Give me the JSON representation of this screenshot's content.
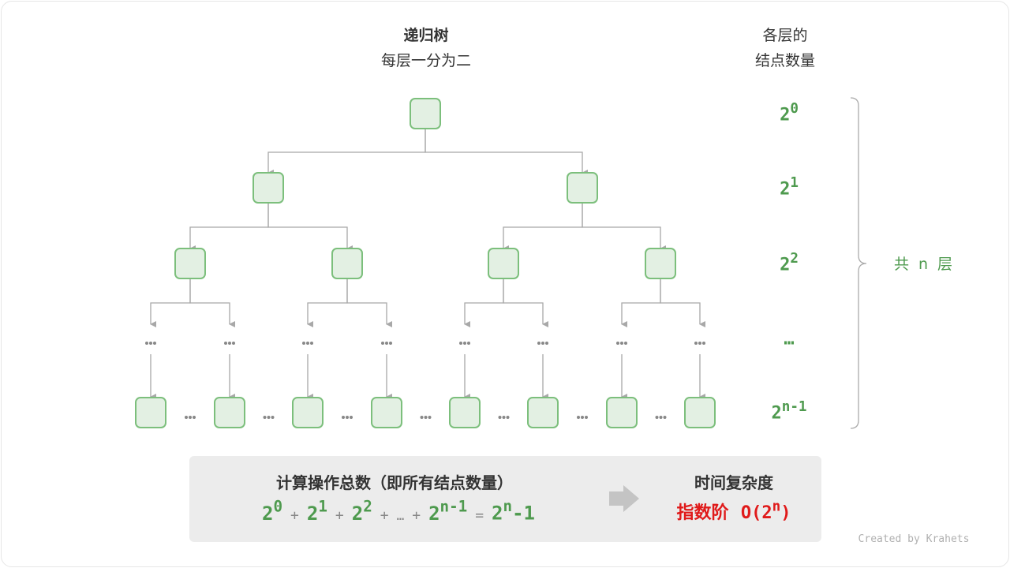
{
  "title": "递归树",
  "subtitle": "每层一分为二",
  "right_header": [
    "各层的",
    "结点数量"
  ],
  "level_counts": [
    {
      "base": "2",
      "exp": "0"
    },
    {
      "base": "2",
      "exp": "1"
    },
    {
      "base": "2",
      "exp": "2"
    },
    {
      "base": "…",
      "exp": ""
    },
    {
      "base": "2",
      "exp": "n-1"
    }
  ],
  "levels_label": "共 n 层",
  "ellipsis": "•••",
  "summary": {
    "ops_title": "计算操作总数（即所有结点数量）",
    "terms": [
      {
        "base": "2",
        "exp": "0"
      },
      {
        "base": "2",
        "exp": "1"
      },
      {
        "base": "2",
        "exp": "2"
      },
      {
        "base": "…",
        "exp": ""
      },
      {
        "base": "2",
        "exp": "n-1"
      }
    ],
    "plus": "+",
    "equals": "=",
    "result_base": "2",
    "result_exp": "n",
    "result_tail": "-1",
    "complexity_title": "时间复杂度",
    "complexity_name": "指数阶",
    "complexity_prefix": "O(2",
    "complexity_exp": "n",
    "complexity_suffix": ")"
  },
  "credit": "Created by Krahets",
  "colors": {
    "node_fill": "#e3f0e3",
    "node_stroke": "#7cbf7c",
    "accent_green": "#4e9a4e",
    "accent_red": "#e01a1a",
    "line": "#a8a8a8"
  }
}
